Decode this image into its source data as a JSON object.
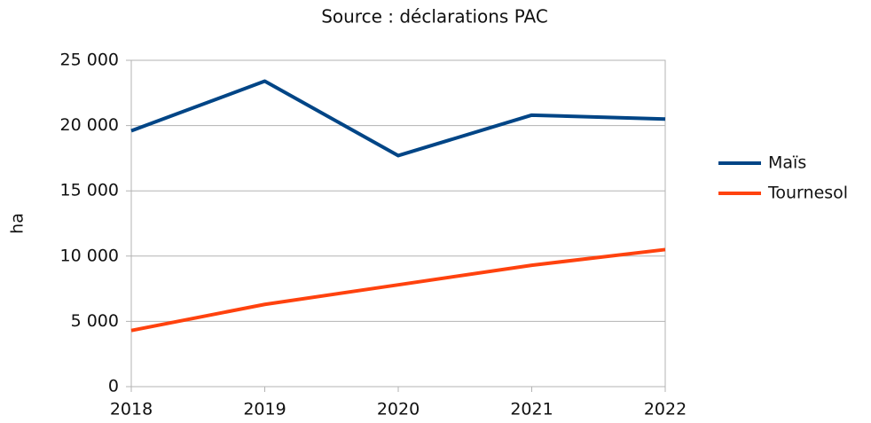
{
  "chart_data": {
    "type": "line",
    "title": "Source : déclarations PAC",
    "y_label": "ha",
    "categories": [
      "2018",
      "2019",
      "2020",
      "2021",
      "2022"
    ],
    "series": [
      {
        "name": "Maïs",
        "color": "#004586",
        "values": [
          19600,
          23400,
          17700,
          20800,
          20500
        ]
      },
      {
        "name": "Tournesol",
        "color": "#ff420e",
        "values": [
          4300,
          6300,
          7800,
          9300,
          10500
        ]
      }
    ],
    "ylim": [
      0,
      25000
    ],
    "yticks": [
      0,
      {
        "value": 5000,
        "label": "5 000"
      },
      {
        "value": 10000,
        "label": "10 000"
      },
      {
        "value": 15000,
        "label": "15 000"
      },
      {
        "value": 20000,
        "label": "20 000"
      },
      {
        "value": 25000,
        "label": "25 000"
      }
    ],
    "grid": true,
    "legend": "right"
  }
}
